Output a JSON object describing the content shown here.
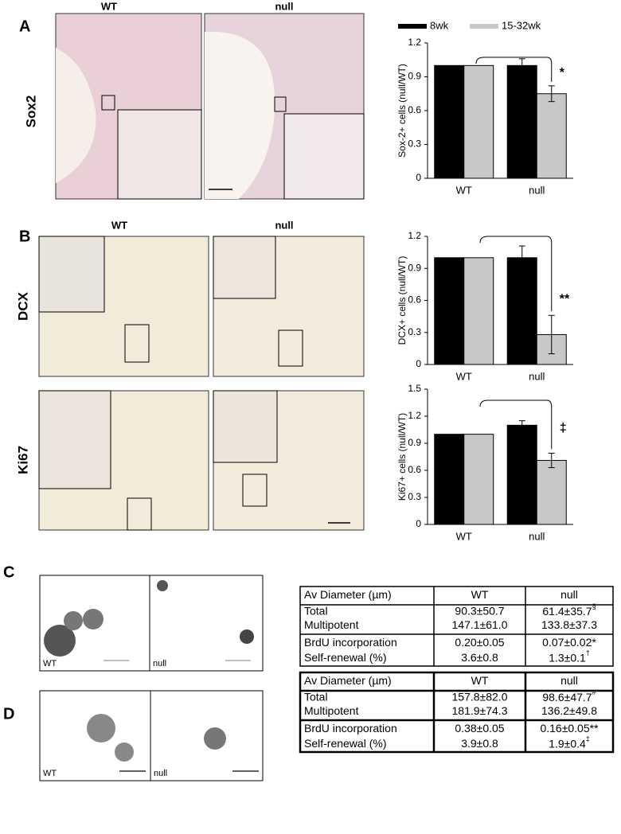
{
  "panel_labels": [
    "A",
    "B",
    "C",
    "D"
  ],
  "panel_a": {
    "col_headers": [
      "WT",
      "null"
    ],
    "row_label": "Sox2"
  },
  "panel_b": {
    "col_headers": [
      "WT",
      "null"
    ],
    "row_labels": [
      "DCX",
      "Ki67"
    ]
  },
  "panel_c": {
    "image_labels": [
      "WT",
      "null"
    ]
  },
  "panel_d": {
    "image_labels": [
      "WT",
      "null"
    ]
  },
  "chart_data": [
    {
      "type": "bar",
      "y_label": "Sox-2+ cells (null/WT)",
      "categories": [
        "WT",
        "null"
      ],
      "series": [
        {
          "name": "8wk",
          "color": "#000000",
          "values": [
            1.0,
            1.0
          ],
          "errors": [
            null,
            0.06
          ]
        },
        {
          "name": "15-32wk",
          "color": "#c8c8c8",
          "values": [
            1.0,
            0.75
          ],
          "errors": [
            null,
            0.07
          ]
        }
      ],
      "ylim": [
        0,
        1.2
      ],
      "yticks": [
        0,
        0.3,
        0.6,
        0.9,
        1.2
      ],
      "legend": "top",
      "annotation": "*"
    },
    {
      "type": "bar",
      "y_label": "DCX+ cells (null/WT)",
      "categories": [
        "WT",
        "null"
      ],
      "series": [
        {
          "color": "#000000",
          "values": [
            1.0,
            1.0
          ],
          "errors": [
            null,
            0.11
          ]
        },
        {
          "color": "#c8c8c8",
          "values": [
            1.0,
            0.28
          ],
          "errors": [
            null,
            0.18
          ]
        }
      ],
      "ylim": [
        0,
        1.2
      ],
      "yticks": [
        0,
        0.3,
        0.6,
        0.9,
        1.2
      ],
      "annotation": "**"
    },
    {
      "type": "bar",
      "y_label": "Ki67+ cells (null/WT)",
      "categories": [
        "WT",
        "null"
      ],
      "series": [
        {
          "color": "#000000",
          "values": [
            1.0,
            1.1
          ],
          "errors": [
            null,
            0.05
          ]
        },
        {
          "color": "#c8c8c8",
          "values": [
            1.0,
            0.71
          ],
          "errors": [
            null,
            0.08
          ]
        }
      ],
      "ylim": [
        0,
        1.5
      ],
      "yticks": [
        0,
        0.3,
        0.6,
        0.9,
        1.2,
        1.5
      ],
      "annotation": "‡"
    }
  ],
  "tables": [
    {
      "header": [
        "Av Diameter  (µm)",
        "WT",
        "null"
      ],
      "rows": [
        [
          "Total",
          "90.3±50.7",
          {
            "text": "61.4±35.7",
            "sup": "§"
          }
        ],
        [
          "Multipotent",
          "147.1±61.0",
          "133.8±37.3"
        ],
        [
          "BrdU incorporation",
          "0.20±0.05",
          "0.07±0.02*"
        ],
        [
          "Self-renewal (%)",
          "3.6±0.8",
          {
            "text": "1.3±0.1",
            "sup": "†"
          }
        ]
      ]
    },
    {
      "header": [
        "Av Diameter  (µm)",
        "WT",
        "null"
      ],
      "rows": [
        [
          "Total",
          "157.8±82.0",
          {
            "text": "98.6±47.7",
            "sup": "#"
          }
        ],
        [
          "Multipotent",
          "181.9±74.3",
          "136.2±49.8"
        ],
        [
          "BrdU incorporation",
          "0.38±0.05",
          "0.16±0.05**"
        ],
        [
          "Self-renewal (%)",
          "3.9±0.8",
          {
            "text": "1.9±0.4",
            "sup": "‡"
          }
        ]
      ]
    }
  ]
}
